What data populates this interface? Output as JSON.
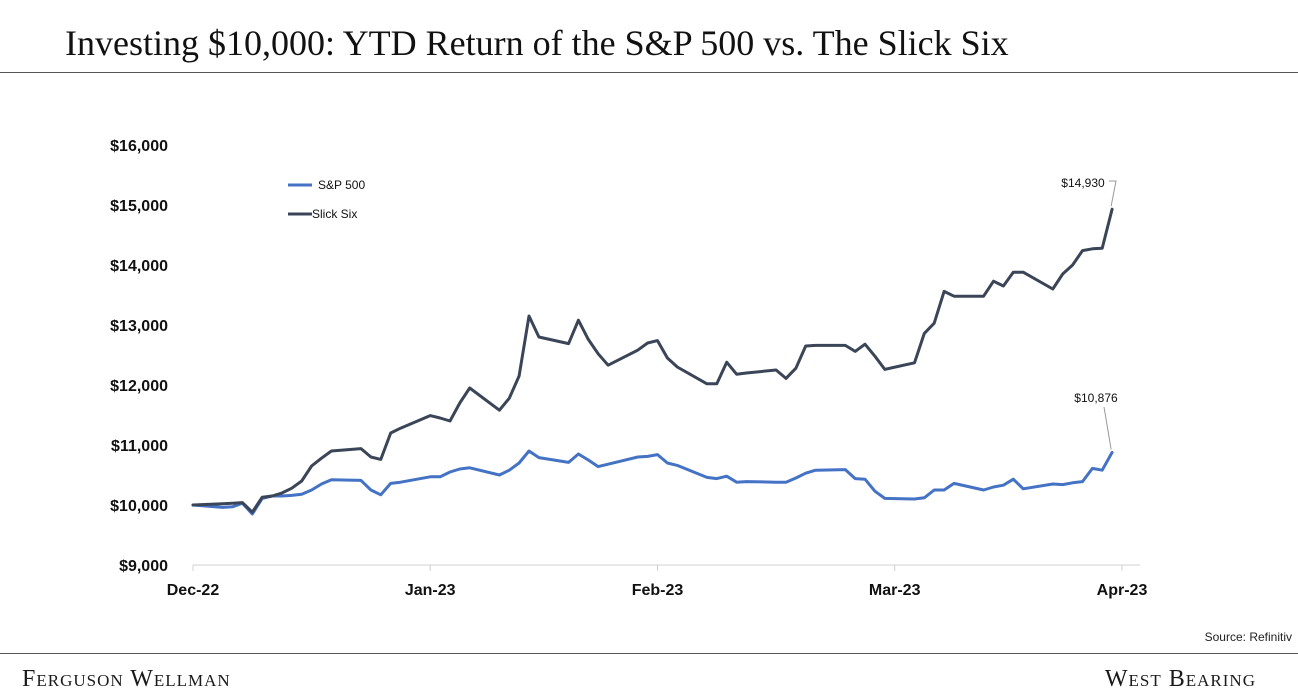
{
  "header": {
    "title": "Investing $10,000: YTD Return of the S&P 500 vs. The Slick Six"
  },
  "footer": {
    "source": "Source: Refinitiv",
    "brand_left": "Ferguson Wellman",
    "brand_right": "West Bearing"
  },
  "colors": {
    "sp500": "#4472C4",
    "slick_six": "#3B4558"
  },
  "chart_data": {
    "type": "line",
    "title": "Investing $10,000: YTD Return of the S&P 500 vs. The Slick Six",
    "xlabel": "",
    "ylabel": "",
    "ylim": [
      9000,
      16000
    ],
    "xlim": [
      0,
      94
    ],
    "yticks": [
      9000,
      10000,
      11000,
      12000,
      13000,
      14000,
      15000,
      16000
    ],
    "ytick_labels": [
      "$9,000",
      "$10,000",
      "$11,000",
      "$12,000",
      "$13,000",
      "$14,000",
      "$15,000",
      "$16,000"
    ],
    "xticks": [
      0,
      24,
      47,
      71,
      94
    ],
    "xtick_labels": [
      "Dec-22",
      "Jan-23",
      "Feb-23",
      "Mar-23",
      "Apr-23"
    ],
    "legend": "top-left",
    "grid": false,
    "series": [
      {
        "name": "S&P 500",
        "x": [
          0,
          3,
          4,
          5,
          6,
          7,
          8,
          9,
          10,
          11,
          12,
          13,
          14,
          17,
          18,
          19,
          20,
          21,
          24,
          25,
          26,
          27,
          28,
          31,
          32,
          33,
          34,
          35,
          38,
          39,
          40,
          41,
          42,
          45,
          46,
          47,
          48,
          49,
          52,
          53,
          54,
          55,
          56,
          59,
          60,
          61,
          62,
          63,
          66,
          67,
          68,
          69,
          70,
          73,
          74,
          75,
          76,
          77,
          80,
          81,
          82,
          83,
          84,
          87,
          88,
          89,
          90,
          91,
          92,
          93
        ],
        "y": [
          10000,
          9960,
          9970,
          10030,
          9850,
          10110,
          10150,
          10150,
          10160,
          10180,
          10250,
          10350,
          10420,
          10410,
          10250,
          10170,
          10360,
          10380,
          10470,
          10470,
          10550,
          10600,
          10620,
          10500,
          10580,
          10700,
          10900,
          10790,
          10710,
          10850,
          10750,
          10640,
          10680,
          10800,
          10810,
          10840,
          10700,
          10660,
          10460,
          10440,
          10480,
          10380,
          10390,
          10380,
          10380,
          10450,
          10530,
          10580,
          10590,
          10440,
          10430,
          10230,
          10110,
          10100,
          10120,
          10250,
          10250,
          10360,
          10250,
          10300,
          10330,
          10430,
          10270,
          10350,
          10340,
          10370,
          10390,
          10610,
          10580,
          10876
        ]
      },
      {
        "name": "Slick Six",
        "x": [
          0,
          3,
          4,
          5,
          6,
          7,
          8,
          9,
          10,
          11,
          12,
          13,
          14,
          17,
          18,
          19,
          20,
          21,
          24,
          25,
          26,
          27,
          28,
          31,
          32,
          33,
          34,
          35,
          38,
          39,
          40,
          41,
          42,
          45,
          46,
          47,
          48,
          49,
          52,
          53,
          54,
          55,
          56,
          59,
          60,
          61,
          62,
          63,
          66,
          67,
          68,
          69,
          70,
          73,
          74,
          75,
          76,
          77,
          80,
          81,
          82,
          83,
          84,
          87,
          88,
          89,
          90,
          91,
          92,
          93
        ],
        "y": [
          10000,
          10020,
          10030,
          10040,
          9880,
          10130,
          10150,
          10200,
          10280,
          10400,
          10650,
          10780,
          10900,
          10940,
          10800,
          10760,
          11200,
          11280,
          11490,
          11450,
          11400,
          11700,
          11950,
          11580,
          11780,
          12150,
          13150,
          12800,
          12690,
          13080,
          12760,
          12520,
          12330,
          12580,
          12700,
          12740,
          12450,
          12300,
          12020,
          12020,
          12380,
          12180,
          12200,
          12250,
          12110,
          12280,
          12650,
          12660,
          12660,
          12560,
          12680,
          12480,
          12260,
          12370,
          12860,
          13030,
          13560,
          13480,
          13480,
          13730,
          13650,
          13880,
          13880,
          13600,
          13850,
          14000,
          14240,
          14270,
          14280,
          14930
        ]
      }
    ],
    "annotations": [
      {
        "series": "Slick Six",
        "x": 93,
        "y": 14930,
        "label": "$14,930"
      },
      {
        "series": "S&P 500",
        "x": 93,
        "y": 10876,
        "label": "$10,876"
      }
    ]
  }
}
